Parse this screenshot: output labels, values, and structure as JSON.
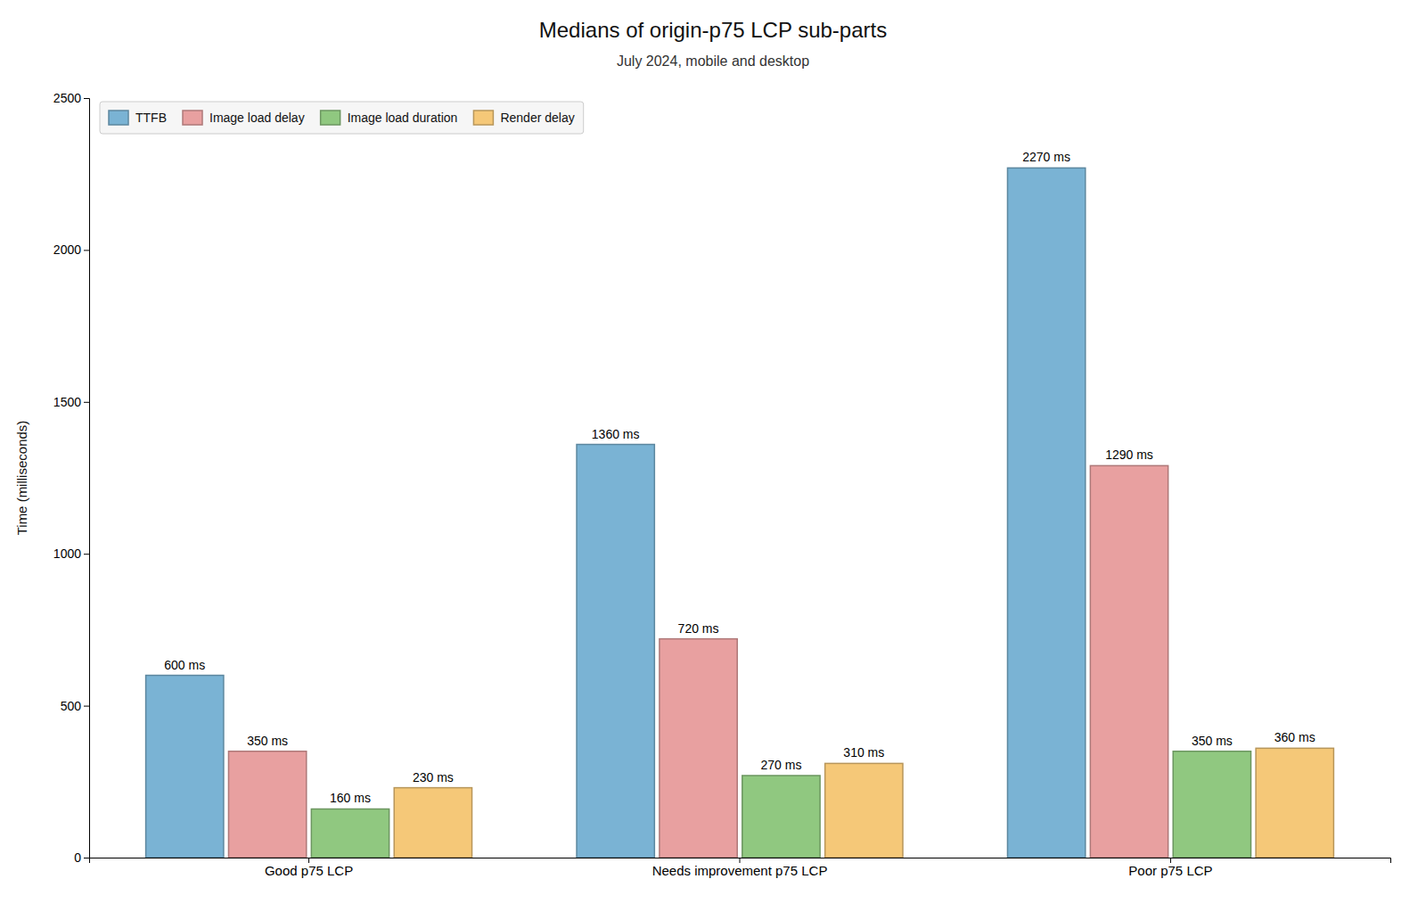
{
  "chart_data": {
    "type": "bar",
    "title": "Medians of origin-p75 LCP sub-parts",
    "subtitle": "July 2024, mobile and desktop",
    "categories": [
      "Good p75 LCP",
      "Needs improvement p75 LCP",
      "Poor p75 LCP"
    ],
    "series": [
      {
        "name": "TTFB",
        "color": "#7ab3d4",
        "values": [
          600,
          1360,
          2270
        ],
        "value_labels": [
          "600 ms",
          "1360 ms",
          "2270 ms"
        ]
      },
      {
        "name": "Image load delay",
        "color": "#e8a0a0",
        "values": [
          350,
          720,
          1290
        ],
        "value_labels": [
          "350 ms",
          "720 ms",
          "1290 ms"
        ]
      },
      {
        "name": "Image load duration",
        "color": "#90c880",
        "values": [
          160,
          270,
          350
        ],
        "value_labels": [
          "160 ms",
          "270 ms",
          "350 ms"
        ]
      },
      {
        "name": "Render delay",
        "color": "#f5c878",
        "values": [
          230,
          310,
          360
        ],
        "value_labels": [
          "230 ms",
          "310 ms",
          "360 ms"
        ]
      }
    ],
    "ylabel": "Time (milliseconds)",
    "ylim": [
      0,
      2500
    ],
    "yticks": [
      0,
      500,
      1000,
      1500,
      2000,
      2500
    ],
    "data_labels": true,
    "legend": "upper left",
    "grid": false
  }
}
